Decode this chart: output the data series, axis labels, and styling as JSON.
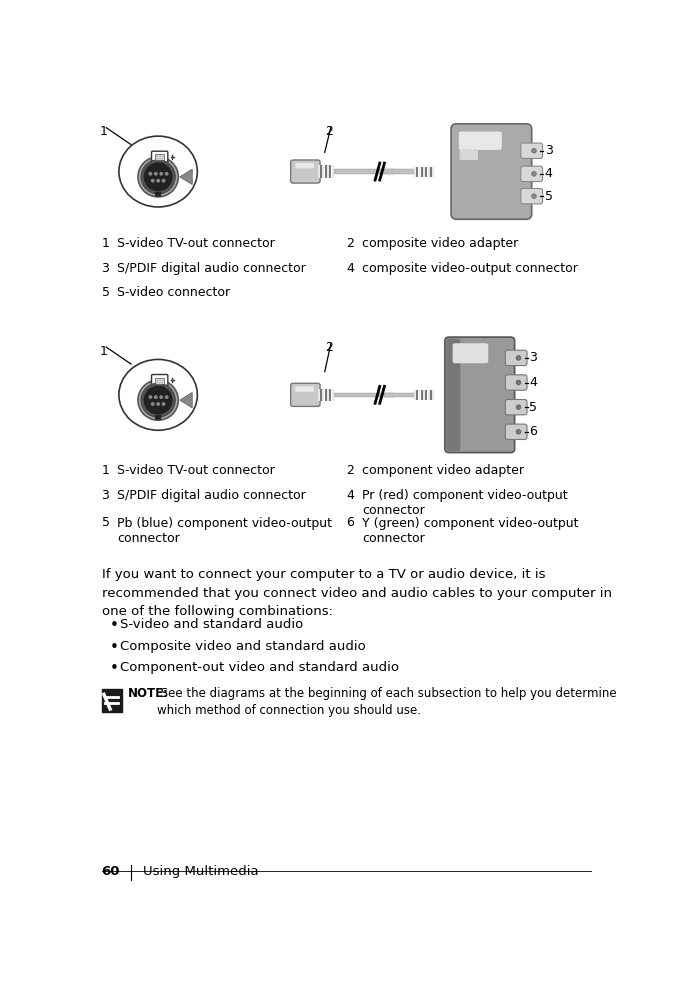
{
  "bg_color": "#ffffff",
  "text_color": "#000000",
  "page_number": "60",
  "page_title": "Using Multimedia",
  "diagram1_labels": {
    "1": "S-video TV-out connector",
    "2": "composite video adapter",
    "3": "S/PDIF digital audio connector",
    "4": "composite video-output connector",
    "5": "S-video connector"
  },
  "diagram2_labels": {
    "1": "S-video TV-out connector",
    "2": "component video adapter",
    "3": "S/PDIF digital audio connector",
    "4": "Pr (red) component video-output\nconnector",
    "5": "Pb (blue) component video-output\nconnector",
    "6": "Y (green) component video-output\nconnector"
  },
  "body_text": "If you want to connect your computer to a TV or audio device, it is\nrecommended that you connect video and audio cables to your computer in\none of the following combinations:",
  "bullets": [
    "S-video and standard audio",
    "Composite video and standard audio",
    "Component-out video and standard audio"
  ],
  "note_bold": "NOTE:",
  "note_text": " See the diagrams at the beginning of each subsection to help you determine\nwhich method of connection you should use.",
  "gray_main": "#aaaaaa",
  "gray_dark": "#777777",
  "gray_med": "#999999",
  "gray_light": "#cccccc",
  "gray_vlight": "#e8e8e8",
  "gray_white": "#f0f0f0",
  "gray_cable": "#c0c0c0",
  "gray_box1_top": "#d8d8d8",
  "gray_box1_body": "#b0b0b0",
  "gray_connector": "#c8c8c8",
  "port_bg": "#d0d0d0",
  "port_inner": "#b8b8b8"
}
